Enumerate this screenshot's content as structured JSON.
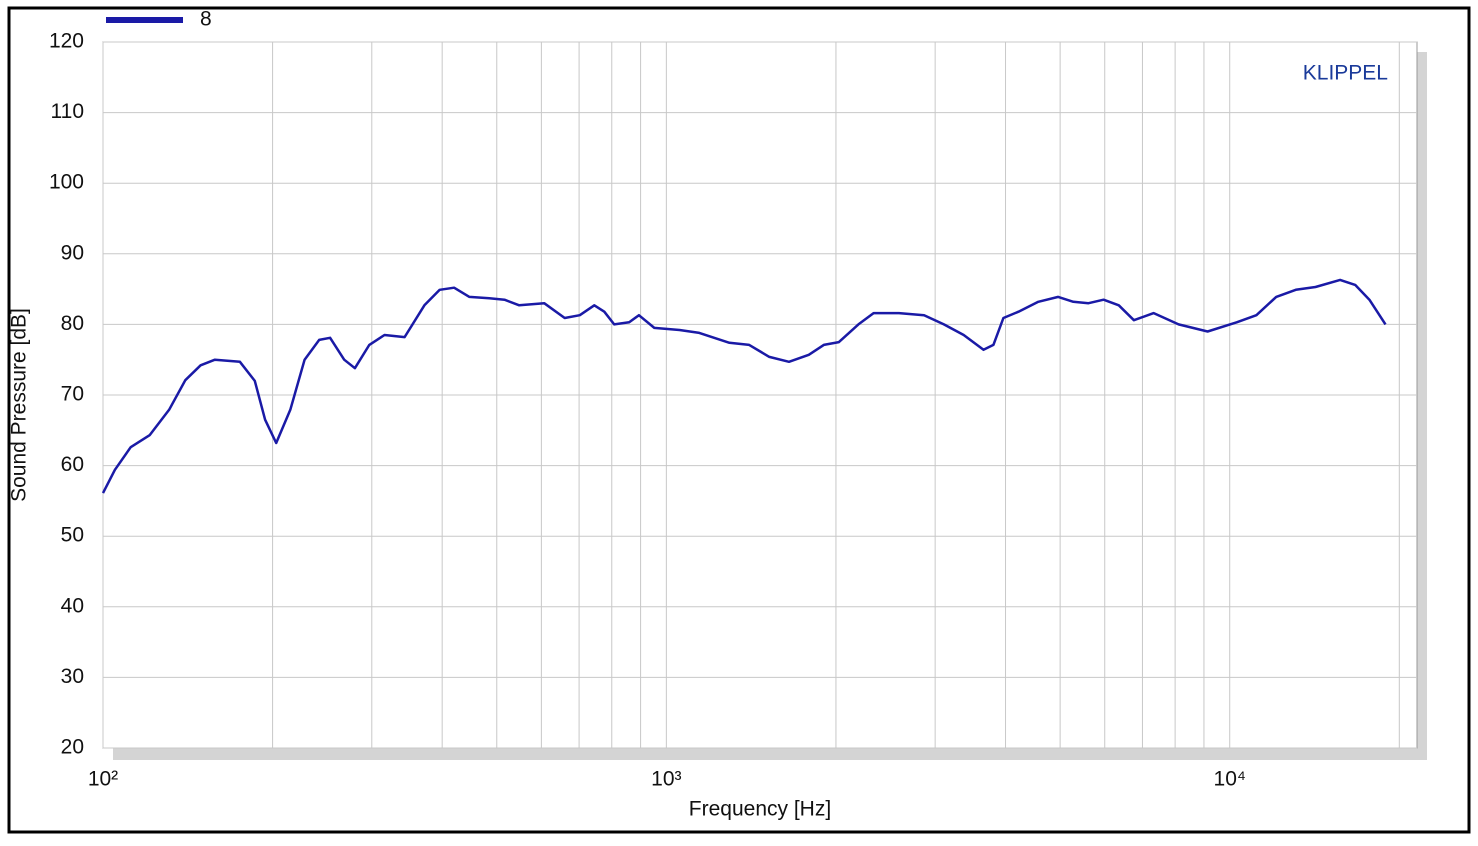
{
  "chart_data": {
    "type": "line",
    "x_scale": "log",
    "annotation": "KLIPPEL",
    "x_label": "Frequency  [Hz]",
    "y_label": "Sound Pressure  [dB]",
    "xlim": [
      100,
      21500
    ],
    "ylim": [
      20,
      120
    ],
    "xticks": [
      {
        "value": 100,
        "label": "10²"
      },
      {
        "value": 1000,
        "label": "10³"
      },
      {
        "value": 10000,
        "label": "10⁴"
      }
    ],
    "xgrid": [
      200,
      300,
      400,
      500,
      600,
      700,
      800,
      900,
      2000,
      3000,
      4000,
      5000,
      6000,
      7000,
      8000,
      9000,
      20000
    ],
    "yticks": [
      20,
      30,
      40,
      50,
      60,
      70,
      80,
      90,
      100,
      110,
      120
    ],
    "grid": true,
    "legend": "top-left",
    "x": [
      100,
      105,
      112,
      121,
      131,
      140,
      149,
      158,
      175,
      186,
      194,
      203,
      215,
      228,
      242,
      253,
      268,
      280,
      297,
      316,
      343,
      372,
      396,
      420,
      447,
      485,
      516,
      548,
      607,
      660,
      702,
      745,
      776,
      808,
      859,
      894,
      952,
      1055,
      1144,
      1294,
      1403,
      1523,
      1651,
      1790,
      1903,
      2024,
      2192,
      2333,
      2588,
      2867,
      3109,
      3372,
      3656,
      3807,
      3965,
      4218,
      4574,
      4960,
      5277,
      5614,
      5972,
      6354,
      6760,
      7330,
      8113,
      9135,
      10290,
      11150,
      12090,
      13100,
      14200,
      15700,
      16700,
      17700,
      18900
    ],
    "series": [
      {
        "name": "8",
        "color": "#1a1aa6",
        "values": [
          56.1,
          59.4,
          62.6,
          64.3,
          67.9,
          72.1,
          74.2,
          75,
          74.7,
          72,
          66.5,
          63.2,
          67.9,
          75,
          77.8,
          78.1,
          75,
          73.8,
          77.1,
          78.5,
          78.2,
          82.7,
          84.9,
          85.2,
          83.9,
          83.7,
          83.5,
          82.7,
          83,
          80.9,
          81.3,
          82.7,
          81.8,
          80,
          80.3,
          81.3,
          79.5,
          79.2,
          78.8,
          77.4,
          77.1,
          75.4,
          74.7,
          75.7,
          77.1,
          77.5,
          80,
          81.6,
          81.6,
          81.3,
          80,
          78.5,
          76.4,
          77.1,
          80.9,
          81.8,
          83.2,
          83.9,
          83.2,
          83,
          83.5,
          82.7,
          80.6,
          81.6,
          80,
          79,
          80.3,
          81.3,
          83.9,
          84.9,
          85.3,
          86.3,
          85.6,
          83.5,
          80
        ]
      }
    ]
  }
}
